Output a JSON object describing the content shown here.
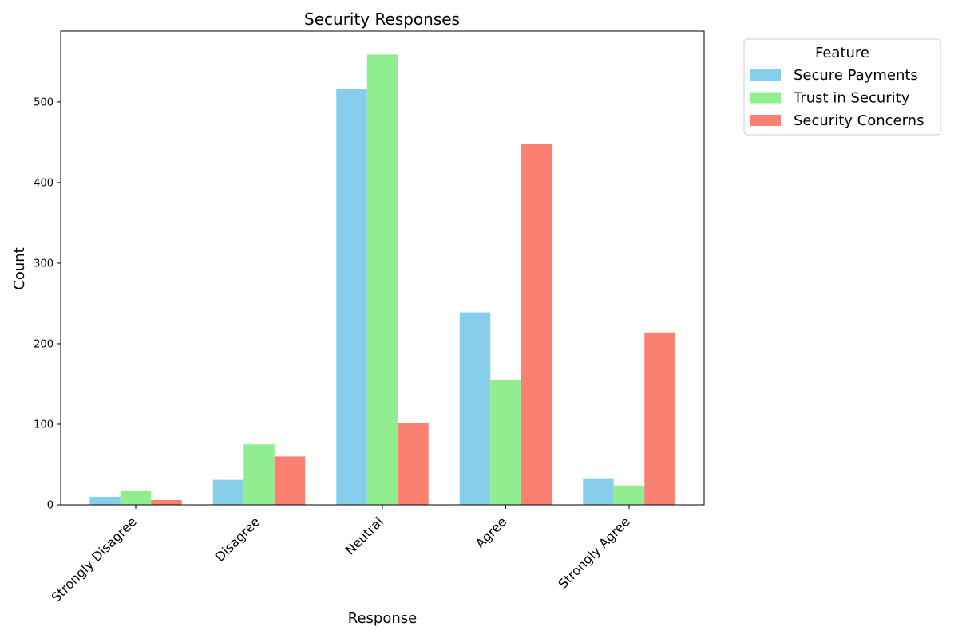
{
  "chart_data": {
    "type": "bar",
    "title": "Security Responses",
    "xlabel": "Response",
    "ylabel": "Count",
    "ylim": [
      0,
      588
    ],
    "yticks": [
      0,
      100,
      200,
      300,
      400,
      500
    ],
    "categories": [
      "Strongly Disagree",
      "Disagree",
      "Neutral",
      "Agree",
      "Strongly Agree"
    ],
    "series": [
      {
        "name": "Secure Payments",
        "color": "#87ceeb",
        "values": [
          10,
          31,
          516,
          239,
          32
        ]
      },
      {
        "name": "Trust in Security",
        "color": "#90ee90",
        "values": [
          17,
          75,
          559,
          155,
          24
        ]
      },
      {
        "name": "Security Concerns",
        "color": "#fa8072",
        "values": [
          6,
          60,
          101,
          448,
          214
        ]
      }
    ],
    "legend": {
      "title": "Feature",
      "position": "outside-top-right"
    },
    "grid": false
  }
}
